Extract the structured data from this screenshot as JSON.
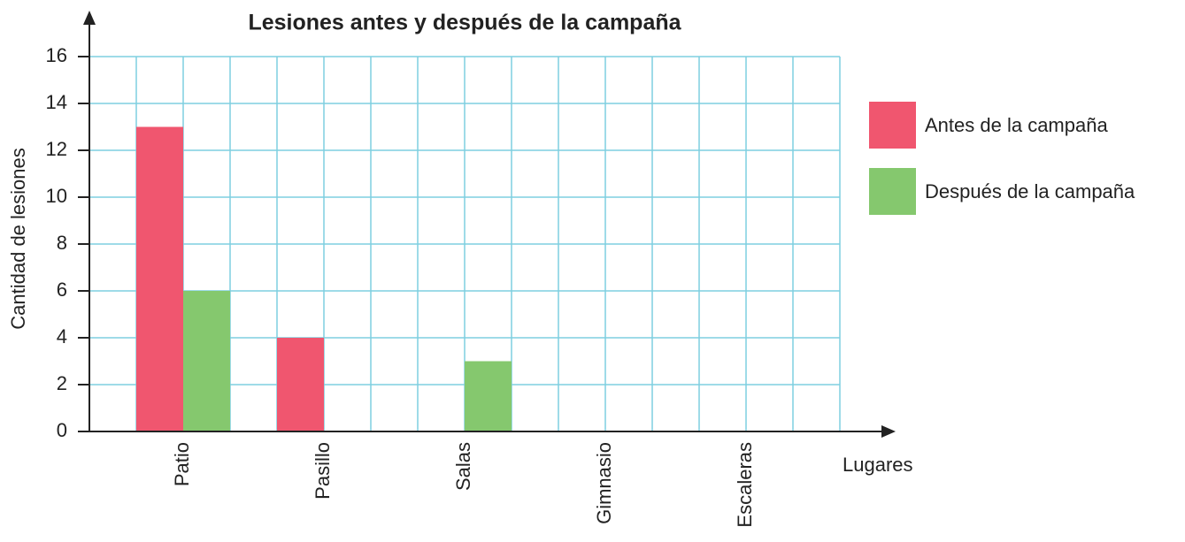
{
  "chart_data": {
    "type": "bar",
    "title": "Lesiones antes y después de la campaña",
    "x_label": "Lugares",
    "y_label": "Cantidad de lesiones",
    "categories": [
      "Patio",
      "Pasillo",
      "Salas",
      "Gimnasio",
      "Escaleras"
    ],
    "series": [
      {
        "name": "Antes de la campaña",
        "color": "#f0566f",
        "values": [
          13,
          4,
          0,
          0,
          0
        ]
      },
      {
        "name": "Después de la campaña",
        "color": "#85c86e",
        "values": [
          6,
          0,
          3,
          0,
          0
        ]
      }
    ],
    "ylim": [
      0,
      16
    ],
    "yticks": [
      0,
      2,
      4,
      6,
      8,
      10,
      12,
      14,
      16
    ],
    "grid": true,
    "legend": "right"
  }
}
